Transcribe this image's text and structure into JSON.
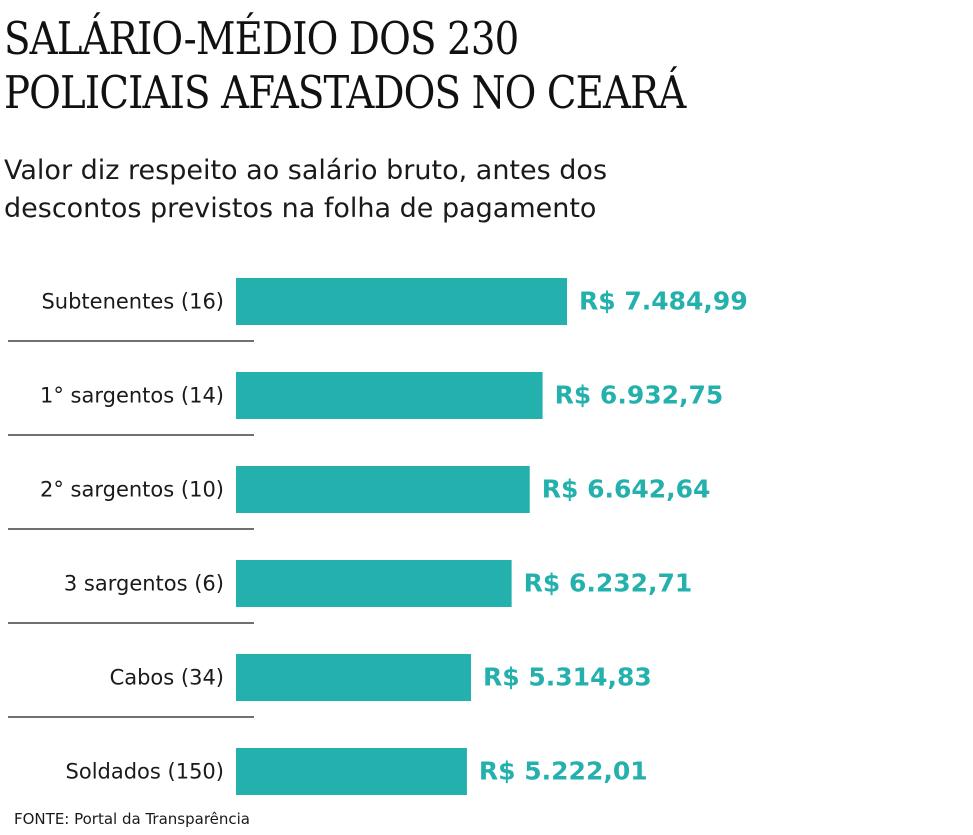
{
  "title": "SALÁRIO-MÉDIO DOS 230\nPOLICIAIS AFASTADOS NO CEARÁ",
  "subtitle": "Valor diz respeito ao salário bruto, antes dos\ndescontos previstos na folha de pagamento",
  "source": "FONTE: Portal da Transparência",
  "colors": {
    "bar": "#24b1ad",
    "label_value": "#24b1ad",
    "text": "#1a1a1a",
    "rule": "#1a1a1a"
  },
  "chart_data": {
    "type": "bar",
    "orientation": "horizontal",
    "categories": [
      "Subtenentes (16)",
      "1° sargentos (14)",
      "2° sargentos (10)",
      "3 sargentos (6)",
      "Cabos (34)",
      "Soldados (150)"
    ],
    "values": [
      7484.99,
      6932.75,
      6642.64,
      6232.71,
      5314.83,
      5222.01
    ],
    "value_labels": [
      "R$ 7.484,99",
      "R$ 6.932,75",
      "R$ 6.642,64",
      "R$ 6.232,71",
      "R$ 5.314,83",
      "R$ 5.222,01"
    ],
    "xlim": [
      0,
      7484.99
    ],
    "grid": false,
    "legend": "none"
  }
}
